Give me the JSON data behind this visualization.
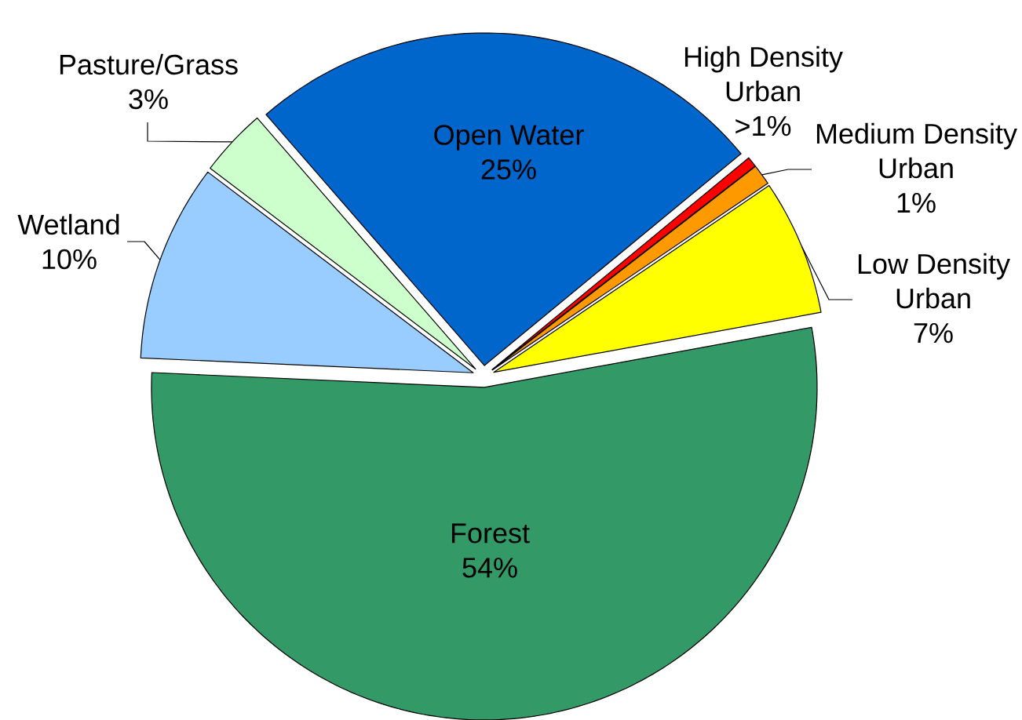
{
  "chart_data": {
    "type": "pie",
    "categories": [
      "Open Water",
      "High Density Urban",
      "Medium Density Urban",
      "Low Density Urban",
      "Forest",
      "Wetland",
      "Pasture/Grass"
    ],
    "values": [
      25.4,
      0.5,
      1.0,
      6.6,
      53.6,
      9.6,
      3.3
    ],
    "colors": [
      "#0066cc",
      "#ff0000",
      "#ff9900",
      "#ffff00",
      "#339966",
      "#99ccff",
      "#ccffcc"
    ],
    "value_labels": [
      "25%",
      ">1%",
      "1%",
      "7%",
      "54%",
      "10%",
      "3%"
    ]
  }
}
